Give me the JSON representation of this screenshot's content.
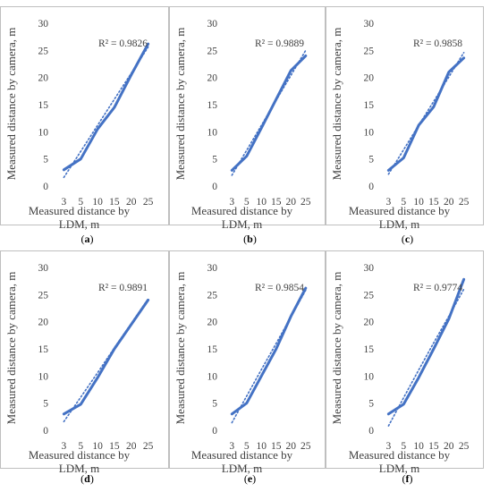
{
  "colors": {
    "series": "#4472c4",
    "text": "#404040",
    "border": "#bfbfbf"
  },
  "chart_data": [
    {
      "type": "line",
      "panel": "a",
      "categories": [
        "3",
        "5",
        "10",
        "15",
        "20",
        "25"
      ],
      "series": [
        {
          "values": [
            3.0,
            5.0,
            10.5,
            14.5,
            20.5,
            26.2
          ]
        },
        {
          "trendline": "linear",
          "values": [
            1.6,
            6.4,
            11.2,
            16.0,
            20.8,
            25.6
          ]
        }
      ],
      "annotation": "R² = 0.9826",
      "xlabel": "Measured distance by LDM, m",
      "ylabel": "Measured distance by camera, m",
      "yticks": [
        "0",
        "5",
        "10",
        "15",
        "20",
        "25",
        "30"
      ],
      "ylim": [
        0,
        30
      ],
      "grid": false,
      "caption": {
        "open": "(",
        "letter": "a",
        "close": ")"
      }
    },
    {
      "type": "line",
      "panel": "b",
      "categories": [
        "3",
        "5",
        "10",
        "15",
        "20",
        "25"
      ],
      "series": [
        {
          "values": [
            2.9,
            5.5,
            10.7,
            16.0,
            21.3,
            24.0
          ]
        },
        {
          "trendline": "linear",
          "values": [
            2.0,
            6.6,
            11.2,
            15.8,
            20.4,
            25.0
          ]
        }
      ],
      "annotation": "R² = 0.9889",
      "xlabel": "Measured distance by LDM, m",
      "ylabel": "Measured distance by camera, m",
      "yticks": [
        "0",
        "5",
        "10",
        "15",
        "20",
        "25",
        "30"
      ],
      "ylim": [
        0,
        30
      ],
      "grid": false,
      "caption": {
        "open": "(",
        "letter": "b",
        "close": ")"
      }
    },
    {
      "type": "line",
      "panel": "c",
      "categories": [
        "3",
        "5",
        "10",
        "15",
        "20",
        "25"
      ],
      "series": [
        {
          "values": [
            2.9,
            5.2,
            11.2,
            14.6,
            21.0,
            23.6
          ]
        },
        {
          "trendline": "linear",
          "values": [
            2.2,
            6.7,
            11.2,
            15.6,
            20.1,
            24.6
          ]
        }
      ],
      "annotation": "R² = 0.9858",
      "xlabel": "Measured distance by LDM, m",
      "ylabel": "Measured distance by camera, m",
      "yticks": [
        "0",
        "5",
        "10",
        "15",
        "20",
        "25",
        "30"
      ],
      "ylim": [
        0,
        30
      ],
      "grid": false,
      "caption": {
        "open": "(",
        "letter": "c",
        "close": ")"
      }
    },
    {
      "type": "line",
      "panel": "d",
      "categories": [
        "3",
        "5",
        "10",
        "15",
        "20",
        "25"
      ],
      "series": [
        {
          "values": [
            3.0,
            4.8,
            9.7,
            15.0,
            19.5,
            24.0
          ]
        },
        {
          "trendline": "linear",
          "values": [
            1.6,
            6.1,
            10.6,
            15.2,
            19.7,
            24.2
          ]
        }
      ],
      "annotation": "R² = 0.9891",
      "xlabel": "Measured distance by LDM, m",
      "ylabel": "Measured distance by camera, m",
      "yticks": [
        "0",
        "5",
        "10",
        "15",
        "20",
        "25",
        "30"
      ],
      "ylim": [
        0,
        30
      ],
      "grid": false,
      "caption": {
        "open": "(",
        "letter": "d",
        "close": ")"
      }
    },
    {
      "type": "line",
      "panel": "e",
      "categories": [
        "3",
        "5",
        "10",
        "15",
        "20",
        "25"
      ],
      "series": [
        {
          "values": [
            3.0,
            5.0,
            10.0,
            15.0,
            21.0,
            26.2
          ]
        },
        {
          "trendline": "linear",
          "values": [
            1.4,
            6.3,
            11.2,
            16.0,
            20.9,
            25.8
          ]
        }
      ],
      "annotation": "R² = 0.9854",
      "xlabel": "Measured distance by LDM, m",
      "ylabel": "Measured distance by camera, m",
      "yticks": [
        "0",
        "5",
        "10",
        "15",
        "20",
        "25",
        "30"
      ],
      "ylim": [
        0,
        30
      ],
      "grid": false,
      "caption": {
        "open": "(",
        "letter": "e",
        "close": ")"
      }
    },
    {
      "type": "line",
      "panel": "f",
      "categories": [
        "3",
        "5",
        "10",
        "15",
        "20",
        "25"
      ],
      "series": [
        {
          "values": [
            3.0,
            4.8,
            9.7,
            15.0,
            20.5,
            27.8
          ]
        },
        {
          "trendline": "linear",
          "values": [
            0.8,
            6.0,
            11.1,
            16.1,
            21.0,
            26.0
          ]
        }
      ],
      "annotation": "R² = 0.9774",
      "xlabel": "Measured distance by LDM, m",
      "ylabel": "Measured distance by camera, m",
      "yticks": [
        "0",
        "5",
        "10",
        "15",
        "20",
        "25",
        "30"
      ],
      "ylim": [
        0,
        30
      ],
      "grid": false,
      "caption": {
        "open": "(",
        "letter": "f",
        "close": ")"
      }
    }
  ]
}
